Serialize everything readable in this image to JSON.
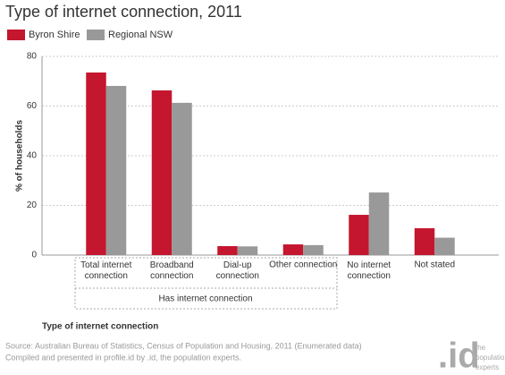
{
  "chart_data": {
    "type": "bar",
    "title": "Type of internet connection, 2011",
    "categories": [
      "Total internet\nconnection",
      "Broadband\nconnection",
      "Dial-up\nconnection",
      "Other connection",
      "No internet\nconnection",
      "Not stated"
    ],
    "series": [
      {
        "name": "Byron Shire",
        "color": "#c4162e",
        "values": [
          73.5,
          66.3,
          3.6,
          4.3,
          16.2,
          10.8
        ]
      },
      {
        "name": "Regional NSW",
        "color": "#999999",
        "values": [
          68.1,
          61.3,
          3.5,
          4.0,
          25.2,
          7.0
        ]
      }
    ],
    "ylim": [
      0,
      80
    ],
    "yticks": [
      0,
      20,
      40,
      60,
      80
    ],
    "grid": true,
    "ylabel": "% of households",
    "xlabel": "Type of internet connection",
    "group_label": "Has internet connection",
    "source": [
      "Source: Australian Bureau of Statistics, Census of Population and Housing, 2011 (Enumerated data)",
      "Compiled and presented in profile.id by .id, the population experts."
    ],
    "logo": {
      "mark": ".id",
      "text": [
        "the",
        "population",
        "experts"
      ]
    }
  }
}
